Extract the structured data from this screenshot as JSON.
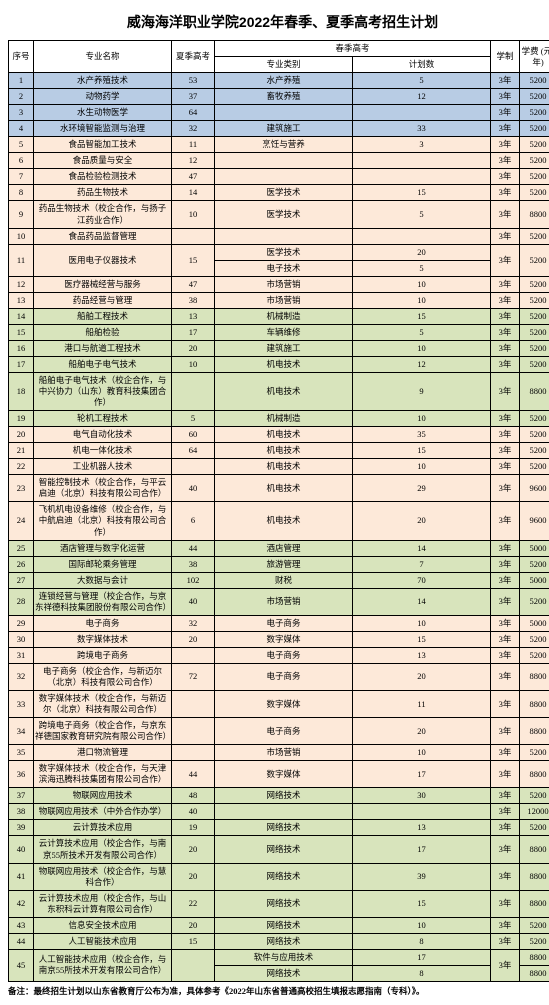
{
  "title": "威海海洋职业学院2022年春季、夏季高考招生计划",
  "headers": {
    "seq": "序号",
    "major": "专业名称",
    "summer": "夏季高考",
    "spring": "春季高考",
    "spring_cat": "专业类别",
    "spring_plan": "计划数",
    "system": "学制",
    "tuition": "学费\n(元/年)"
  },
  "colors": {
    "blue": "#b8cce4",
    "green": "#d8e4bc",
    "orange": "#fde9d9"
  },
  "rows": [
    {
      "n": "1",
      "m": "水产养殖技术",
      "s": "53",
      "cat": "水产养殖",
      "p": "5",
      "sys": "3年",
      "t": "5200",
      "c": "blue"
    },
    {
      "n": "2",
      "m": "动物药学",
      "s": "37",
      "cat": "畜牧养殖",
      "p": "12",
      "sys": "3年",
      "t": "5200",
      "c": "blue"
    },
    {
      "n": "3",
      "m": "水生动物医学",
      "s": "64",
      "cat": "",
      "p": "",
      "sys": "3年",
      "t": "5200",
      "c": "blue"
    },
    {
      "n": "4",
      "m": "水环境智能监测与治理",
      "s": "32",
      "cat": "建筑施工",
      "p": "33",
      "sys": "3年",
      "t": "5200",
      "c": "blue"
    },
    {
      "n": "5",
      "m": "食品智能加工技术",
      "s": "11",
      "cat": "烹饪与营养",
      "p": "3",
      "sys": "3年",
      "t": "5200",
      "c": "orange"
    },
    {
      "n": "6",
      "m": "食品质量与安全",
      "s": "12",
      "cat": "",
      "p": "",
      "sys": "3年",
      "t": "5200",
      "c": "orange"
    },
    {
      "n": "7",
      "m": "食品检验检测技术",
      "s": "47",
      "cat": "",
      "p": "",
      "sys": "3年",
      "t": "5200",
      "c": "orange"
    },
    {
      "n": "8",
      "m": "药品生物技术",
      "s": "14",
      "cat": "医学技术",
      "p": "15",
      "sys": "3年",
      "t": "5200",
      "c": "orange"
    },
    {
      "n": "9",
      "m": "药品生物技术（校企合作，与扬子江药业合作）",
      "s": "10",
      "cat": "医学技术",
      "p": "5",
      "sys": "3年",
      "t": "8800",
      "c": "orange"
    },
    {
      "n": "10",
      "m": "食品药品监督管理",
      "s": "",
      "cat": "",
      "p": "",
      "sys": "3年",
      "t": "5200",
      "c": "orange"
    },
    {
      "n": "11",
      "m": "医用电子仪器技术",
      "s": "15",
      "cat": "医学技术",
      "p": "20",
      "sys": "3年",
      "t": "5200",
      "c": "orange",
      "sub": [
        {
          "cat": "电子技术",
          "p": "5"
        }
      ]
    },
    {
      "n": "12",
      "m": "医疗器械经营与服务",
      "s": "47",
      "cat": "市场营销",
      "p": "10",
      "sys": "3年",
      "t": "5200",
      "c": "orange"
    },
    {
      "n": "13",
      "m": "药品经营与管理",
      "s": "38",
      "cat": "市场营销",
      "p": "10",
      "sys": "3年",
      "t": "5200",
      "c": "orange"
    },
    {
      "n": "14",
      "m": "船舶工程技术",
      "s": "13",
      "cat": "机械制造",
      "p": "15",
      "sys": "3年",
      "t": "5200",
      "c": "green"
    },
    {
      "n": "15",
      "m": "船舶检验",
      "s": "17",
      "cat": "车辆维修",
      "p": "5",
      "sys": "3年",
      "t": "5200",
      "c": "green"
    },
    {
      "n": "16",
      "m": "港口与航道工程技术",
      "s": "20",
      "cat": "建筑施工",
      "p": "10",
      "sys": "3年",
      "t": "5200",
      "c": "green"
    },
    {
      "n": "17",
      "m": "船舶电子电气技术",
      "s": "10",
      "cat": "机电技术",
      "p": "12",
      "sys": "3年",
      "t": "5200",
      "c": "green"
    },
    {
      "n": "18",
      "m": "船舶电子电气技术（校企合作，与中兴协力（山东）教育科技集团合作）",
      "s": "",
      "cat": "机电技术",
      "p": "9",
      "sys": "3年",
      "t": "8800",
      "c": "green"
    },
    {
      "n": "19",
      "m": "轮机工程技术",
      "s": "5",
      "cat": "机械制造",
      "p": "10",
      "sys": "3年",
      "t": "5200",
      "c": "green"
    },
    {
      "n": "20",
      "m": "电气自动化技术",
      "s": "60",
      "cat": "机电技术",
      "p": "35",
      "sys": "3年",
      "t": "5200",
      "c": "orange"
    },
    {
      "n": "21",
      "m": "机电一体化技术",
      "s": "64",
      "cat": "机电技术",
      "p": "15",
      "sys": "3年",
      "t": "5200",
      "c": "orange"
    },
    {
      "n": "22",
      "m": "工业机器人技术",
      "s": "",
      "cat": "机电技术",
      "p": "10",
      "sys": "3年",
      "t": "5200",
      "c": "orange"
    },
    {
      "n": "23",
      "m": "智能控制技术（校企合作，与平云启迪（北京）科技有限公司合作）",
      "s": "40",
      "cat": "机电技术",
      "p": "29",
      "sys": "3年",
      "t": "9600",
      "c": "orange"
    },
    {
      "n": "24",
      "m": "飞机机电设备维修（校企合作，与中航启迪（北京）科技有限公司合作）",
      "s": "6",
      "cat": "机电技术",
      "p": "20",
      "sys": "3年",
      "t": "9600",
      "c": "orange"
    },
    {
      "n": "25",
      "m": "酒店管理与数字化运营",
      "s": "44",
      "cat": "酒店管理",
      "p": "14",
      "sys": "3年",
      "t": "5000",
      "c": "green"
    },
    {
      "n": "26",
      "m": "国际邮轮乘务管理",
      "s": "38",
      "cat": "旅游管理",
      "p": "7",
      "sys": "3年",
      "t": "5200",
      "c": "green"
    },
    {
      "n": "27",
      "m": "大数据与会计",
      "s": "102",
      "cat": "财税",
      "p": "70",
      "sys": "3年",
      "t": "5000",
      "c": "green"
    },
    {
      "n": "28",
      "m": "连锁经营与管理（校企合作，与京东祥德科技集团股份有限公司合作）",
      "s": "40",
      "cat": "市场营销",
      "p": "14",
      "sys": "3年",
      "t": "5200",
      "c": "green"
    },
    {
      "n": "29",
      "m": "电子商务",
      "s": "32",
      "cat": "电子商务",
      "p": "10",
      "sys": "3年",
      "t": "5000",
      "c": "orange"
    },
    {
      "n": "30",
      "m": "数字媒体技术",
      "s": "20",
      "cat": "数字媒体",
      "p": "15",
      "sys": "3年",
      "t": "5200",
      "c": "orange"
    },
    {
      "n": "31",
      "m": "跨境电子商务",
      "s": "",
      "cat": "电子商务",
      "p": "13",
      "sys": "3年",
      "t": "5200",
      "c": "orange"
    },
    {
      "n": "32",
      "m": "电子商务（校企合作，与新迈尔（北京）科技有限公司合作）",
      "s": "72",
      "cat": "电子商务",
      "p": "20",
      "sys": "3年",
      "t": "8800",
      "c": "orange"
    },
    {
      "n": "33",
      "m": "数字媒体技术（校企合作，与新迈尔（北京）科技有限公司合作）",
      "s": "",
      "cat": "数字媒体",
      "p": "11",
      "sys": "3年",
      "t": "8800",
      "c": "orange"
    },
    {
      "n": "34",
      "m": "跨境电子商务（校企合作，与京东祥德国家教育研究院有限公司合作）",
      "s": "",
      "cat": "电子商务",
      "p": "20",
      "sys": "3年",
      "t": "8800",
      "c": "orange"
    },
    {
      "n": "35",
      "m": "港口物流管理",
      "s": "",
      "cat": "市场营销",
      "p": "10",
      "sys": "3年",
      "t": "5200",
      "c": "orange"
    },
    {
      "n": "36",
      "m": "数字媒体技术（校企合作，与天津滨海迅腾科技集团有限公司合作）",
      "s": "44",
      "cat": "数字媒体",
      "p": "17",
      "sys": "3年",
      "t": "8800",
      "c": "orange"
    },
    {
      "n": "37",
      "m": "物联网应用技术",
      "s": "48",
      "cat": "网络技术",
      "p": "30",
      "sys": "3年",
      "t": "5200",
      "c": "green"
    },
    {
      "n": "38",
      "m": "物联网应用技术（中外合作办学）",
      "s": "40",
      "cat": "",
      "p": "",
      "sys": "3年",
      "t": "12000",
      "c": "green"
    },
    {
      "n": "39",
      "m": "云计算技术应用",
      "s": "19",
      "cat": "网络技术",
      "p": "13",
      "sys": "3年",
      "t": "5200",
      "c": "green"
    },
    {
      "n": "40",
      "m": "云计算技术应用（校企合作，与南京55所技术开发有限公司合作）",
      "s": "20",
      "cat": "网络技术",
      "p": "17",
      "sys": "3年",
      "t": "8800",
      "c": "green"
    },
    {
      "n": "41",
      "m": "物联网应用技术（校企合作，与慧科合作）",
      "s": "20",
      "cat": "网络技术",
      "p": "39",
      "sys": "3年",
      "t": "8800",
      "c": "green"
    },
    {
      "n": "42",
      "m": "云计算技术应用（校企合作，与山东积科云计算有限公司合作）",
      "s": "22",
      "cat": "网络技术",
      "p": "15",
      "sys": "3年",
      "t": "8800",
      "c": "green"
    },
    {
      "n": "43",
      "m": "信息安全技术应用",
      "s": "20",
      "cat": "网络技术",
      "p": "10",
      "sys": "3年",
      "t": "5200",
      "c": "green"
    },
    {
      "n": "44",
      "m": "人工智能技术应用",
      "s": "15",
      "cat": "网络技术",
      "p": "8",
      "sys": "3年",
      "t": "5200",
      "c": "green"
    },
    {
      "n": "45",
      "m": "人工智能技术应用（校企合作，与南京55所技术开发有限公司合作）",
      "s": "",
      "cat": "软件与应用技术",
      "p": "17",
      "sys": "3年",
      "t": "8800",
      "c": "green",
      "sub": [
        {
          "cat": "网络技术",
          "p": "8",
          "t": "8800"
        }
      ]
    }
  ],
  "footnote": "备注：最终招生计划以山东省教育厅公布为准，具体参考《2022年山东省普通高校招生填报志愿指南（专科）》。"
}
